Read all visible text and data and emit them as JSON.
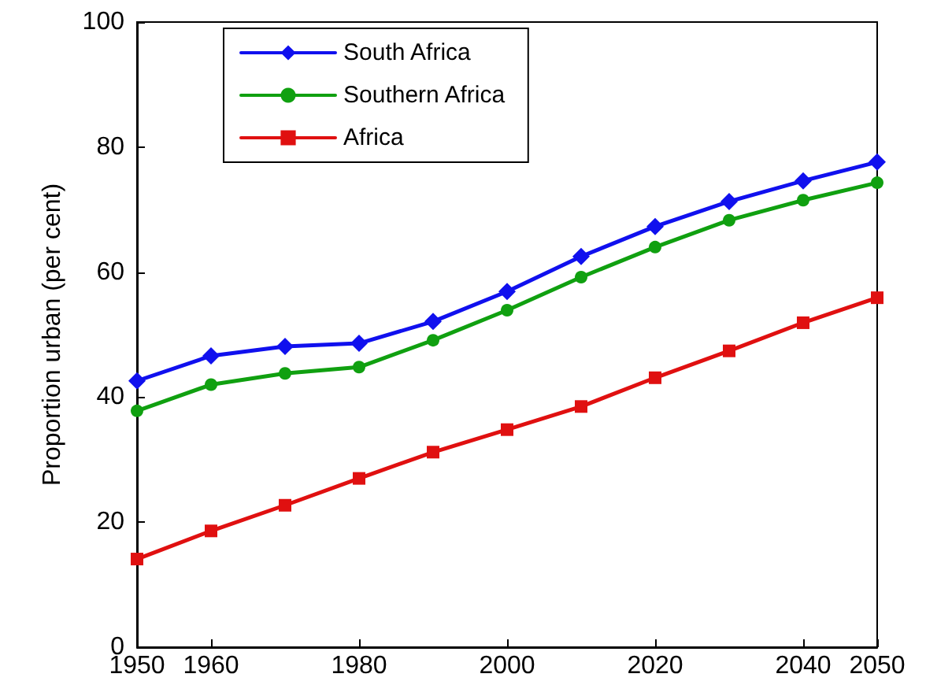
{
  "chart_data": {
    "type": "line",
    "ylabel": "Proportion urban (per cent)",
    "x": [
      1950,
      1960,
      1970,
      1980,
      1990,
      2000,
      2010,
      2020,
      2030,
      2040,
      2050
    ],
    "series": [
      {
        "name": "South Africa",
        "color": "#1010ee",
        "marker": "diamond",
        "values": [
          42.6,
          46.6,
          48.1,
          48.6,
          52.1,
          56.9,
          62.5,
          67.3,
          71.3,
          74.6,
          77.6
        ]
      },
      {
        "name": "Southern Africa",
        "color": "#10a010",
        "marker": "circle",
        "values": [
          37.8,
          42.0,
          43.8,
          44.8,
          49.1,
          53.9,
          59.2,
          64.0,
          68.3,
          71.5,
          74.3
        ]
      },
      {
        "name": "Africa",
        "color": "#e01010",
        "marker": "square",
        "values": [
          14.1,
          18.6,
          22.7,
          27.0,
          31.2,
          34.8,
          38.5,
          43.1,
          47.4,
          51.9,
          55.9
        ]
      }
    ],
    "xlim": [
      1950,
      2050
    ],
    "xticks": [
      1950,
      1960,
      1980,
      2000,
      2020,
      2040,
      2050
    ],
    "ylim": [
      0,
      100
    ],
    "yticks": [
      0,
      20,
      40,
      60,
      80,
      100
    ],
    "grid": false,
    "legend": "top left",
    "line_style": "solid"
  }
}
